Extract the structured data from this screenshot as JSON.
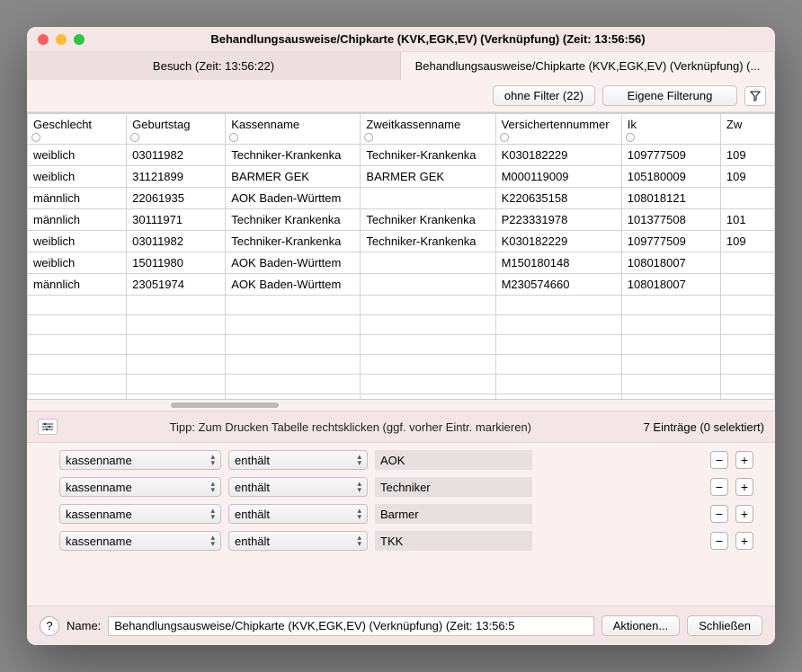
{
  "window": {
    "title": "Behandlungsausweise/Chipkarte (KVK,EGK,EV) (Verknüpfung) (Zeit: 13:56:56)"
  },
  "tabs": [
    {
      "label": "Besuch  (Zeit: 13:56:22)"
    },
    {
      "label": "Behandlungsausweise/Chipkarte (KVK,EGK,EV) (Verknüpfung) (..."
    }
  ],
  "filterbar": {
    "ohne_filter": "ohne Filter (22)",
    "eigene": "Eigene Filterung"
  },
  "table": {
    "columns": [
      "Geschlecht",
      "Geburtstag",
      "Kassenname",
      "Zweitkassenname",
      "Versichertennummer",
      "Ik",
      "Zw"
    ],
    "rows": [
      [
        "weiblich",
        "03011982",
        "Techniker-Krankenka",
        "Techniker-Krankenka",
        "K030182229",
        "109777509",
        "109"
      ],
      [
        "weiblich",
        "31121899",
        "BARMER GEK",
        "BARMER GEK",
        "M000119009",
        "105180009",
        "109"
      ],
      [
        "männlich",
        "22061935",
        "AOK Baden-Württem",
        "",
        "K220635158",
        "108018121",
        ""
      ],
      [
        "männlich",
        "30111971",
        "Techniker Krankenka",
        "Techniker Krankenka",
        "P223331978",
        "101377508",
        "101"
      ],
      [
        "weiblich",
        "03011982",
        "Techniker-Krankenka",
        "Techniker-Krankenka",
        "K030182229",
        "109777509",
        "109"
      ],
      [
        "weiblich",
        "15011980",
        "AOK Baden-Württem",
        "",
        "M150180148",
        "108018007",
        ""
      ],
      [
        "männlich",
        "23051974",
        "AOK Baden-Württem",
        "",
        "M230574660",
        "108018007",
        ""
      ]
    ]
  },
  "midbar": {
    "tip": "Tipp: Zum Drucken Tabelle rechtsklicken (ggf. vorher Eintr. markieren)",
    "count": "7 Einträge (0 selektiert)"
  },
  "filters": [
    {
      "field": "kassenname",
      "op": "enthält",
      "value": "AOK"
    },
    {
      "field": "kassenname",
      "op": "enthält",
      "value": "Techniker"
    },
    {
      "field": "kassenname",
      "op": "enthält",
      "value": "Barmer"
    },
    {
      "field": "kassenname",
      "op": "enthält",
      "value": "TKK"
    }
  ],
  "footer": {
    "name_label": "Name:",
    "name_value": "Behandlungsausweise/Chipkarte (KVK,EGK,EV) (Verknüpfung) (Zeit: 13:56:5",
    "aktionen": "Aktionen...",
    "schliessen": "Schließen"
  }
}
